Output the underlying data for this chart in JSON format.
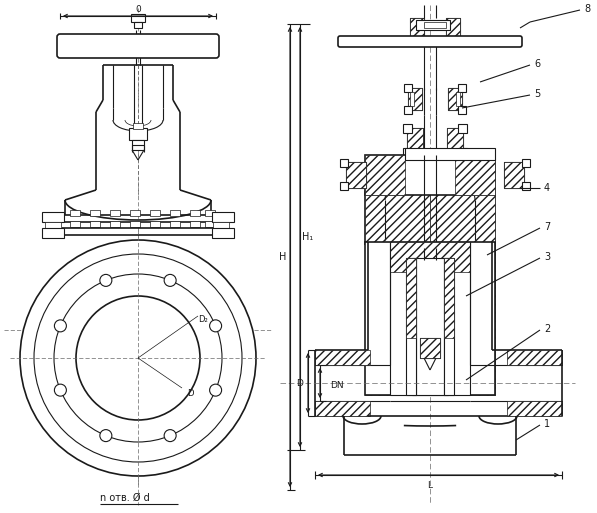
{
  "bg_color": "#ffffff",
  "line_color": "#1a1a1a",
  "text_color": "#1a1a1a",
  "labels": {
    "dimension_o": "0",
    "label_n_otv": "n отв. Ø d",
    "label_D2": "D₂",
    "label_D_inner": "D",
    "label_H": "H",
    "label_H1": "H₁",
    "label_DN": "DN",
    "label_D_dim": "D",
    "label_L": "L",
    "num_1": "1",
    "num_2": "2",
    "num_3": "3",
    "num_4": "4",
    "num_5": "5",
    "num_6": "6",
    "num_7": "7",
    "num_8": "8"
  },
  "figsize": [
    5.97,
    5.13
  ],
  "dpi": 100
}
